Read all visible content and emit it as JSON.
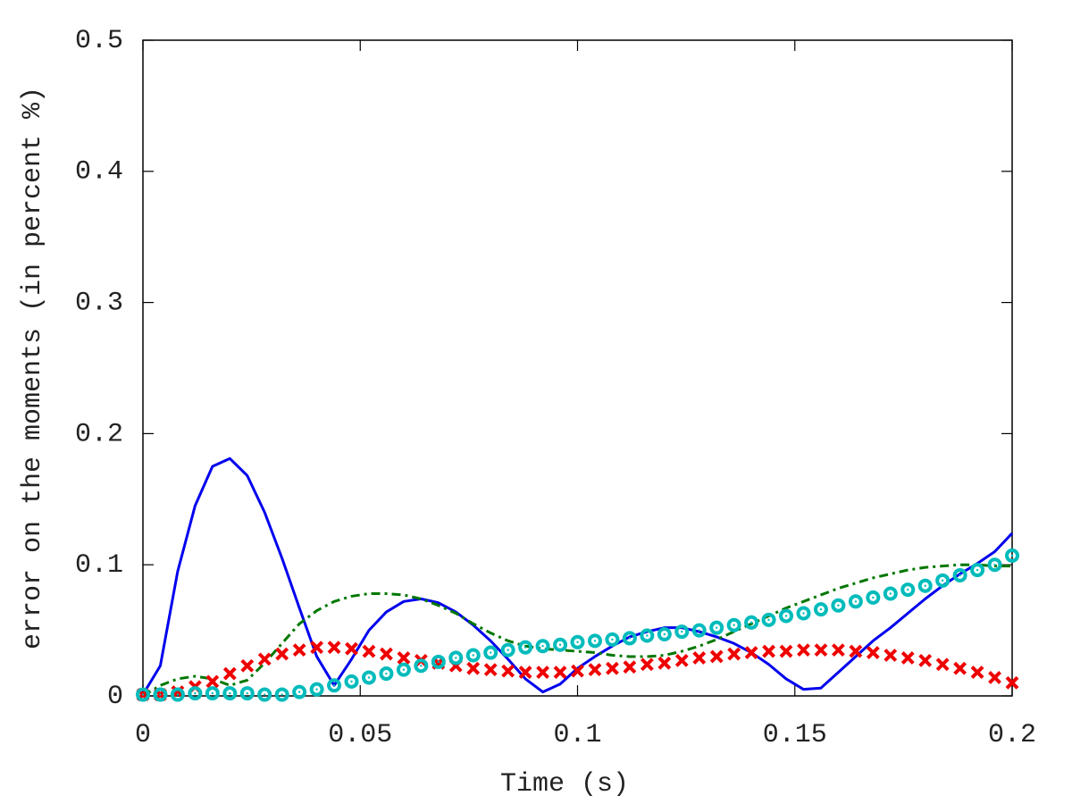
{
  "chart_data": {
    "type": "line",
    "xlabel": "Time (s)",
    "ylabel": "error on the moments (in percent %)",
    "x": [
      0,
      0.004,
      0.008,
      0.012,
      0.016,
      0.02,
      0.024,
      0.028,
      0.032,
      0.036,
      0.04,
      0.044,
      0.048,
      0.052,
      0.056,
      0.06,
      0.064,
      0.068,
      0.072,
      0.076,
      0.08,
      0.084,
      0.088,
      0.092,
      0.096,
      0.1,
      0.104,
      0.108,
      0.112,
      0.116,
      0.12,
      0.124,
      0.128,
      0.132,
      0.136,
      0.14,
      0.144,
      0.148,
      0.152,
      0.156,
      0.16,
      0.164,
      0.168,
      0.172,
      0.176,
      0.18,
      0.184,
      0.188,
      0.192,
      0.196,
      0.2
    ],
    "series": [
      {
        "color": "#0000ee",
        "style": "solid",
        "values": [
          0.001,
          0.023,
          0.095,
          0.145,
          0.175,
          0.181,
          0.168,
          0.14,
          0.105,
          0.067,
          0.03,
          0.008,
          0.028,
          0.05,
          0.064,
          0.072,
          0.074,
          0.071,
          0.064,
          0.054,
          0.042,
          0.028,
          0.013,
          0.003,
          0.009,
          0.021,
          0.03,
          0.038,
          0.045,
          0.049,
          0.052,
          0.052,
          0.049,
          0.045,
          0.04,
          0.033,
          0.024,
          0.013,
          0.005,
          0.006,
          0.018,
          0.03,
          0.042,
          0.052,
          0.063,
          0.074,
          0.084,
          0.093,
          0.101,
          0.11,
          0.124
        ]
      },
      {
        "color": "#007700",
        "style": "dashdot",
        "values": [
          0,
          0.008,
          0.013,
          0.015,
          0.013,
          0.008,
          0.012,
          0.025,
          0.04,
          0.055,
          0.065,
          0.072,
          0.076,
          0.078,
          0.078,
          0.077,
          0.074,
          0.069,
          0.063,
          0.055,
          0.048,
          0.042,
          0.038,
          0.036,
          0.035,
          0.034,
          0.033,
          0.031,
          0.03,
          0.03,
          0.031,
          0.034,
          0.038,
          0.043,
          0.049,
          0.055,
          0.061,
          0.067,
          0.072,
          0.077,
          0.082,
          0.086,
          0.09,
          0.093,
          0.096,
          0.098,
          0.099,
          0.1,
          0.1,
          0.099,
          0.099
        ]
      },
      {
        "color": "#ee0000",
        "style": "cross",
        "values": [
          0.001,
          0.001,
          0.003,
          0.007,
          0.011,
          0.017,
          0.023,
          0.028,
          0.032,
          0.035,
          0.037,
          0.037,
          0.036,
          0.034,
          0.032,
          0.029,
          0.027,
          0.025,
          0.023,
          0.021,
          0.02,
          0.019,
          0.018,
          0.018,
          0.018,
          0.019,
          0.02,
          0.021,
          0.022,
          0.024,
          0.025,
          0.027,
          0.029,
          0.03,
          0.032,
          0.033,
          0.034,
          0.034,
          0.035,
          0.035,
          0.035,
          0.034,
          0.033,
          0.031,
          0.029,
          0.027,
          0.024,
          0.021,
          0.018,
          0.014,
          0.01
        ]
      },
      {
        "color": "#00bbbb",
        "style": "circle",
        "values": [
          0.001,
          0.001,
          0.001,
          0.002,
          0.002,
          0.002,
          0.002,
          0.001,
          0.001,
          0.003,
          0.005,
          0.008,
          0.011,
          0.014,
          0.017,
          0.02,
          0.023,
          0.026,
          0.029,
          0.031,
          0.033,
          0.035,
          0.037,
          0.038,
          0.039,
          0.041,
          0.042,
          0.043,
          0.044,
          0.046,
          0.047,
          0.049,
          0.05,
          0.052,
          0.054,
          0.056,
          0.058,
          0.061,
          0.063,
          0.066,
          0.069,
          0.072,
          0.075,
          0.078,
          0.081,
          0.084,
          0.088,
          0.092,
          0.096,
          0.1,
          0.107
        ]
      }
    ],
    "xlim": [
      0,
      0.2
    ],
    "xticks": [
      0,
      0.05,
      0.1,
      0.15,
      0.2
    ],
    "ylim": [
      0,
      0.5
    ],
    "yticks": [
      0,
      0.1,
      0.2,
      0.3,
      0.4,
      0.5
    ],
    "grid": false
  }
}
